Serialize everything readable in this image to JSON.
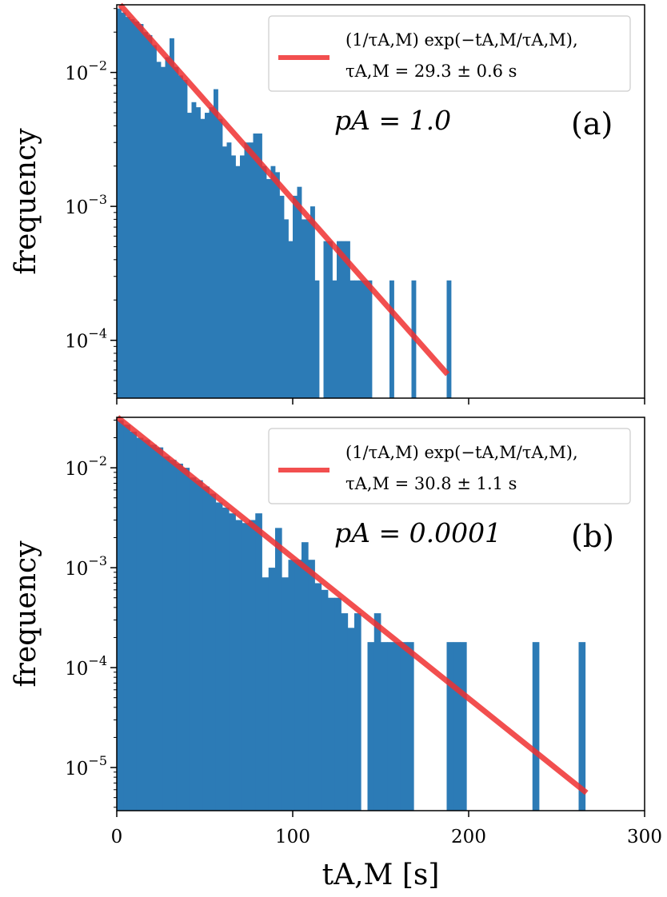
{
  "chart_data": [
    {
      "type": "bar",
      "panel_label": "(a)",
      "ylabel": "frequency",
      "yscale": "log",
      "xlim": [
        0,
        300
      ],
      "ylim": [
        3.7e-05,
        0.032
      ],
      "xticks": [
        0,
        100,
        200,
        300
      ],
      "x_tick_labels_shown": false,
      "yticks": [
        {
          "value": 0.01,
          "base": "10",
          "exp": "−2"
        },
        {
          "value": 0.001,
          "base": "10",
          "exp": "−3"
        },
        {
          "value": 0.0001,
          "base": "10",
          "exp": "−4"
        }
      ],
      "bin_width": 2.5,
      "bar_color": "#2c7bb6",
      "bars": [
        {
          "x": 0,
          "y": 0.03
        },
        {
          "x": 2.5,
          "y": 0.028
        },
        {
          "x": 5,
          "y": 0.026
        },
        {
          "x": 7.5,
          "y": 0.025
        },
        {
          "x": 10,
          "y": 0.024
        },
        {
          "x": 12.5,
          "y": 0.023
        },
        {
          "x": 15,
          "y": 0.02
        },
        {
          "x": 17.5,
          "y": 0.019
        },
        {
          "x": 20,
          "y": 0.016
        },
        {
          "x": 22.5,
          "y": 0.012
        },
        {
          "x": 25,
          "y": 0.011
        },
        {
          "x": 27.5,
          "y": 0.013
        },
        {
          "x": 30,
          "y": 0.018
        },
        {
          "x": 32.5,
          "y": 0.011
        },
        {
          "x": 35,
          "y": 0.0095
        },
        {
          "x": 37.5,
          "y": 0.0088
        },
        {
          "x": 40,
          "y": 0.005
        },
        {
          "x": 42.5,
          "y": 0.006
        },
        {
          "x": 45,
          "y": 0.0055
        },
        {
          "x": 47.5,
          "y": 0.0045
        },
        {
          "x": 50,
          "y": 0.005
        },
        {
          "x": 52.5,
          "y": 0.0055
        },
        {
          "x": 55,
          "y": 0.0075
        },
        {
          "x": 57.5,
          "y": 0.0045
        },
        {
          "x": 60,
          "y": 0.0028
        },
        {
          "x": 62.5,
          "y": 0.003
        },
        {
          "x": 65,
          "y": 0.0024
        },
        {
          "x": 67.5,
          "y": 0.002
        },
        {
          "x": 70,
          "y": 0.0024
        },
        {
          "x": 72.5,
          "y": 0.003
        },
        {
          "x": 75,
          "y": 0.003
        },
        {
          "x": 77.5,
          "y": 0.0035
        },
        {
          "x": 80,
          "y": 0.0035
        },
        {
          "x": 82.5,
          "y": 0.002
        },
        {
          "x": 85,
          "y": 0.0016
        },
        {
          "x": 87.5,
          "y": 0.002
        },
        {
          "x": 90,
          "y": 0.0018
        },
        {
          "x": 92.5,
          "y": 0.0012
        },
        {
          "x": 95,
          "y": 0.0008
        },
        {
          "x": 97.5,
          "y": 0.00055
        },
        {
          "x": 100,
          "y": 0.0012
        },
        {
          "x": 102.5,
          "y": 0.0014
        },
        {
          "x": 105,
          "y": 0.0008
        },
        {
          "x": 107.5,
          "y": 0.0008
        },
        {
          "x": 110,
          "y": 0.001
        },
        {
          "x": 112.5,
          "y": 0.00028
        },
        {
          "x": 117.5,
          "y": 0.00055
        },
        {
          "x": 120,
          "y": 0.00055
        },
        {
          "x": 122.5,
          "y": 0.00028
        },
        {
          "x": 125,
          "y": 0.00055
        },
        {
          "x": 127.5,
          "y": 0.00055
        },
        {
          "x": 130,
          "y": 0.00055
        },
        {
          "x": 132.5,
          "y": 0.00028
        },
        {
          "x": 135,
          "y": 0.00028
        },
        {
          "x": 137.5,
          "y": 0.00028
        },
        {
          "x": 140,
          "y": 0.00028
        },
        {
          "x": 142.5,
          "y": 0.00028
        },
        {
          "x": 155,
          "y": 0.00028
        },
        {
          "x": 167.5,
          "y": 0.00028
        },
        {
          "x": 187.5,
          "y": 0.00028
        }
      ],
      "fit": {
        "tau": 29.3,
        "x_start": 0,
        "x_end": 188,
        "color": "#f03030"
      },
      "legend": {
        "line1": "(1/τA,M) exp(−tA,M/τA,M),",
        "line2": "τA,M = 29.3 ± 0.6 s",
        "placement": "top-right"
      },
      "annotation": "pA = 1.0"
    },
    {
      "type": "bar",
      "panel_label": "(b)",
      "ylabel": "frequency",
      "xlabel": "tA,M [s]",
      "yscale": "log",
      "xlim": [
        0,
        300
      ],
      "ylim": [
        3.7e-06,
        0.032
      ],
      "xticks": [
        0,
        100,
        200,
        300
      ],
      "x_tick_labels": [
        "0",
        "100",
        "200",
        "300"
      ],
      "yticks": [
        {
          "value": 0.01,
          "base": "10",
          "exp": "−2"
        },
        {
          "value": 0.001,
          "base": "10",
          "exp": "−3"
        },
        {
          "value": 0.0001,
          "base": "10",
          "exp": "−4"
        },
        {
          "value": 1e-05,
          "base": "10",
          "exp": "−5"
        }
      ],
      "bin_width": 3.75,
      "bar_color": "#2c7bb6",
      "bars": [
        {
          "x": 0,
          "y": 0.03
        },
        {
          "x": 3.75,
          "y": 0.027
        },
        {
          "x": 7.5,
          "y": 0.023
        },
        {
          "x": 11.25,
          "y": 0.02
        },
        {
          "x": 15,
          "y": 0.019
        },
        {
          "x": 18.75,
          "y": 0.017
        },
        {
          "x": 22.5,
          "y": 0.016
        },
        {
          "x": 26.25,
          "y": 0.013
        },
        {
          "x": 30,
          "y": 0.012
        },
        {
          "x": 33.75,
          "y": 0.011
        },
        {
          "x": 37.5,
          "y": 0.01
        },
        {
          "x": 41.25,
          "y": 0.008
        },
        {
          "x": 45,
          "y": 0.0075
        },
        {
          "x": 48.75,
          "y": 0.0065
        },
        {
          "x": 52.5,
          "y": 0.0055
        },
        {
          "x": 56.25,
          "y": 0.0045
        },
        {
          "x": 60,
          "y": 0.004
        },
        {
          "x": 63.75,
          "y": 0.0035
        },
        {
          "x": 67.5,
          "y": 0.003
        },
        {
          "x": 71.25,
          "y": 0.0028
        },
        {
          "x": 75,
          "y": 0.003
        },
        {
          "x": 78.75,
          "y": 0.0035
        },
        {
          "x": 82.5,
          "y": 0.0008
        },
        {
          "x": 86.25,
          "y": 0.001
        },
        {
          "x": 90,
          "y": 0.0025
        },
        {
          "x": 93.75,
          "y": 0.0008
        },
        {
          "x": 97.5,
          "y": 0.0012
        },
        {
          "x": 101.25,
          "y": 0.0012
        },
        {
          "x": 105,
          "y": 0.0018
        },
        {
          "x": 108.75,
          "y": 0.0012
        },
        {
          "x": 112.5,
          "y": 0.0007
        },
        {
          "x": 116.25,
          "y": 0.0006
        },
        {
          "x": 120,
          "y": 0.0005
        },
        {
          "x": 123.75,
          "y": 0.0005
        },
        {
          "x": 127.5,
          "y": 0.00035
        },
        {
          "x": 131.25,
          "y": 0.00025
        },
        {
          "x": 135,
          "y": 0.00035
        },
        {
          "x": 142.5,
          "y": 0.00018
        },
        {
          "x": 146.25,
          "y": 0.00035
        },
        {
          "x": 150,
          "y": 0.00018
        },
        {
          "x": 153.75,
          "y": 0.00018
        },
        {
          "x": 157.5,
          "y": 0.00018
        },
        {
          "x": 161.25,
          "y": 0.00018
        },
        {
          "x": 165,
          "y": 0.00018
        },
        {
          "x": 187.5,
          "y": 0.00018
        },
        {
          "x": 191.25,
          "y": 0.00018
        },
        {
          "x": 195,
          "y": 0.00018
        },
        {
          "x": 236.25,
          "y": 0.00018
        },
        {
          "x": 262.5,
          "y": 0.00018
        }
      ],
      "fit": {
        "tau": 30.8,
        "x_start": 0,
        "x_end": 267,
        "color": "#f03030"
      },
      "legend": {
        "line1": "(1/τA,M) exp(−tA,M/τA,M),",
        "line2": "τA,M = 30.8 ± 1.1 s",
        "placement": "top-right"
      },
      "annotation": "pA = 0.0001"
    }
  ]
}
